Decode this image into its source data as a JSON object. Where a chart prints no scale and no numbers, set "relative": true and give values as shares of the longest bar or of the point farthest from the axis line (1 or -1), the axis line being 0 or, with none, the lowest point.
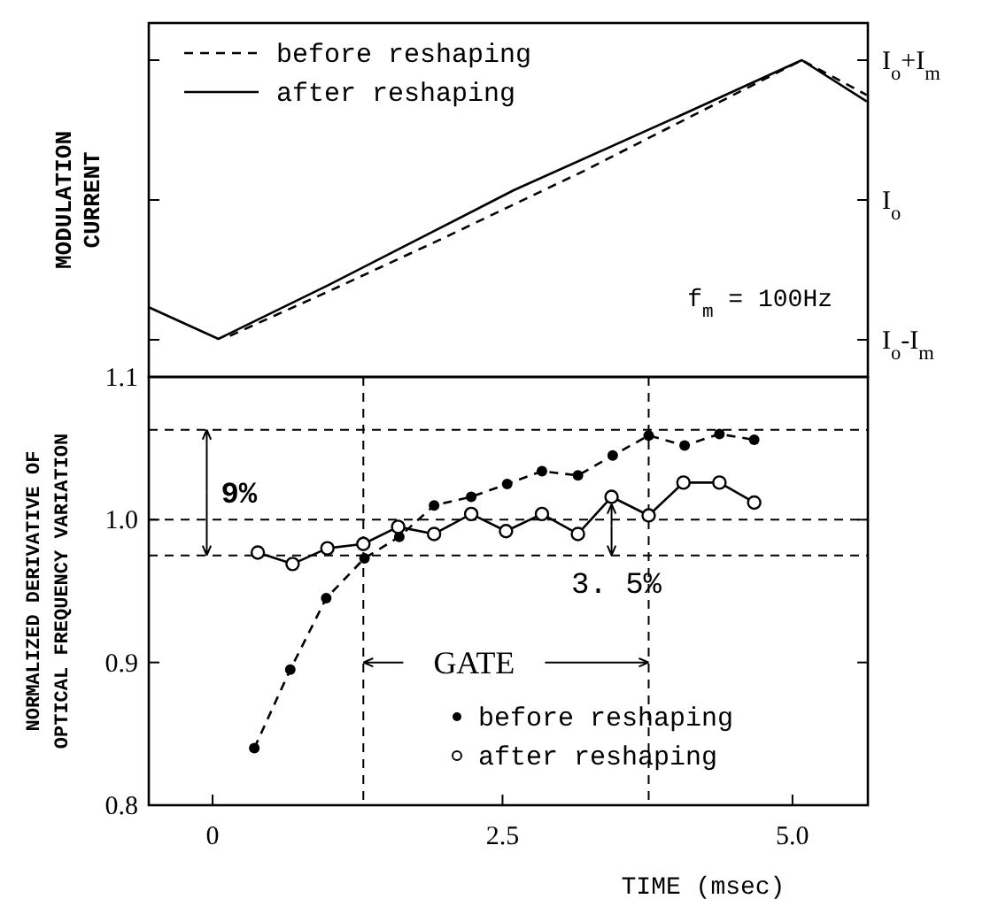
{
  "chart_data": [
    {
      "type": "line",
      "ylabel": "MODULATION CURRENT",
      "xlim": [
        -0.55,
        5.65
      ],
      "relative": true,
      "legend": "top left",
      "grid": false,
      "annotations": [
        "I$_{o}$+I$_{m}$",
        "I$_{o}$",
        "I$_{o}$-I$_{m}$",
        "f$_{m}$ = 100Hz"
      ],
      "series": [
        {
          "name": "before reshaping",
          "color": "#000000",
          "line_style": "dashed",
          "x": [
            0.15,
            1.0,
            2.0,
            3.2,
            5.08,
            5.64
          ],
          "values": [
            0.13,
            0.27,
            0.44,
            0.65,
            1,
            0.89
          ]
        },
        {
          "name": "after reshaping",
          "color": "#000000",
          "line_style": "solid",
          "x": [
            -0.55,
            0.05,
            1.0,
            2.6,
            4.0,
            5.08,
            5.64
          ],
          "values": [
            0.22,
            0.12,
            0.29,
            0.59,
            0.82,
            1,
            0.87
          ]
        }
      ]
    },
    {
      "type": "line",
      "ylabel": "NORMALIZED DERIVATIVE OF OPTICAL FREQUENCY VARIATION",
      "xlabel": "TIME (msec)",
      "xlim": [
        -0.55,
        5.65
      ],
      "ylim": [
        0.8,
        1.1
      ],
      "xticks": [
        0,
        2.5,
        {
          "value": 5,
          "label": "5.0"
        }
      ],
      "yticks": [
        0.8,
        0.9,
        {
          "value": 1,
          "label": "1.0"
        },
        1.1
      ],
      "legend": "bottom right",
      "grid": false,
      "ref_lines": [
        {
          "axis": "y",
          "value": 1,
          "line_style": "dashed"
        },
        {
          "axis": "y",
          "value": 1.063,
          "line_style": "dashed"
        },
        {
          "axis": "y",
          "value": 0.975,
          "line_style": "dashed"
        },
        {
          "axis": "x",
          "value": 1.3,
          "line_style": "dashed"
        },
        {
          "axis": "x",
          "value": 3.76,
          "line_style": "dashed"
        }
      ],
      "annotations": [
        {
          "text": "9%",
          "x": -0.05,
          "y": 1.063
        },
        "3. 5%",
        {
          "text": "GATE",
          "x": 3.76,
          "y": 0.9
        }
      ],
      "series": [
        {
          "name": "before reshaping",
          "color": "#000000",
          "line_style": "dashed",
          "marker": "circle",
          "x": [
            0.36,
            0.67,
            0.98,
            1.31,
            1.61,
            1.91,
            2.23,
            2.54,
            2.84,
            3.15,
            3.45,
            3.76,
            4.07,
            4.37,
            4.67
          ],
          "values": [
            0.84,
            0.895,
            0.945,
            0.973,
            0.988,
            1.01,
            1.016,
            1.025,
            1.034,
            1.031,
            1.045,
            1.059,
            1.052,
            1.06,
            1.056
          ]
        },
        {
          "name": "after reshaping",
          "color": "#000000",
          "line_style": "solid",
          "marker": "circle-open",
          "x": [
            0.39,
            0.69,
            0.99,
            1.3,
            1.6,
            1.91,
            2.23,
            2.53,
            2.84,
            3.15,
            3.44,
            3.76,
            4.06,
            4.37,
            4.67
          ],
          "values": [
            0.977,
            0.969,
            0.98,
            0.983,
            0.995,
            0.99,
            1.004,
            0.992,
            1.004,
            0.99,
            1.016,
            1.003,
            1.026,
            1.026,
            1.012
          ]
        }
      ]
    }
  ]
}
